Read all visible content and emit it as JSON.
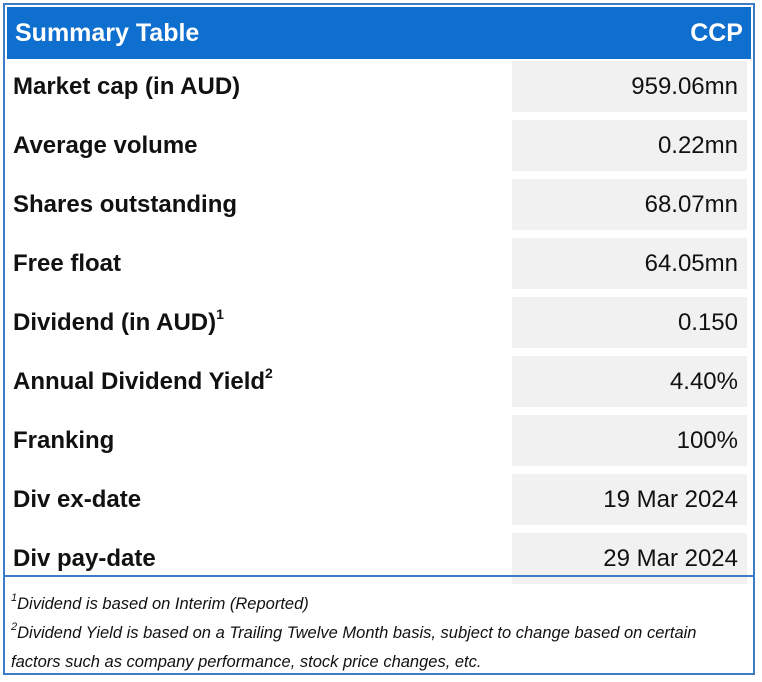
{
  "header": {
    "title": "Summary Table",
    "ticker": "CCP"
  },
  "rows": [
    {
      "label": "Market cap (in AUD)",
      "sup": "",
      "value": "959.06mn"
    },
    {
      "label": "Average volume",
      "sup": "",
      "value": "0.22mn"
    },
    {
      "label": "Shares outstanding",
      "sup": "",
      "value": "68.07mn"
    },
    {
      "label": "Free float",
      "sup": "",
      "value": "64.05mn"
    },
    {
      "label": "Dividend (in AUD)",
      "sup": "1",
      "value": "0.150"
    },
    {
      "label": "Annual Dividend Yield",
      "sup": "2",
      "value": "4.40%"
    },
    {
      "label": "Franking",
      "sup": "",
      "value": "100%"
    },
    {
      "label": "Div ex-date",
      "sup": "",
      "value": "19 Mar 2024"
    },
    {
      "label": "Div pay-date",
      "sup": "",
      "value": "29 Mar 2024"
    }
  ],
  "footnotes": [
    {
      "marker": "1",
      "text": "Dividend is based on Interim (Reported)"
    },
    {
      "marker": "2",
      "text": "Dividend Yield is based on a Trailing Twelve Month basis, subject to change based on certain factors such as company performance, stock price changes, etc."
    }
  ],
  "colors": {
    "header_bg": "#0e6fcf",
    "border": "#3d7cc9",
    "value_bg": "#f1f1f1"
  }
}
